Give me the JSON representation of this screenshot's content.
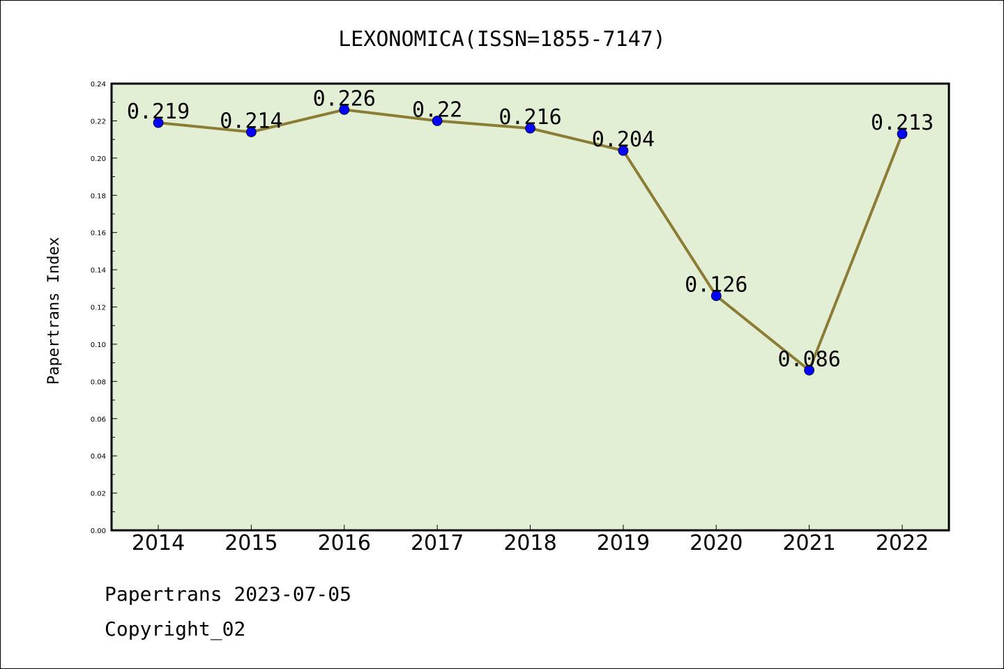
{
  "chart_data": {
    "type": "line",
    "title": "LEXONOMICA(ISSN=1855-7147)",
    "xlabel": "",
    "ylabel": "Papertrans Index",
    "categories": [
      "2014",
      "2015",
      "2016",
      "2017",
      "2018",
      "2019",
      "2020",
      "2021",
      "2022"
    ],
    "series": [
      {
        "values": [
          0.219,
          0.214,
          0.226,
          0.22,
          0.216,
          0.204,
          0.126,
          0.086,
          0.213
        ]
      }
    ],
    "data_labels": [
      "0.219",
      "0.214",
      "0.226",
      "0.22",
      "0.216",
      "0.204",
      "0.126",
      "0.086",
      "0.213"
    ],
    "ylim": [
      0,
      0.24
    ],
    "yticks": [
      "0.00",
      "0.02",
      "0.04",
      "0.06",
      "0.08",
      "0.10",
      "0.12",
      "0.14",
      "0.16",
      "0.18",
      "0.20",
      "0.22",
      "0.24"
    ],
    "grid": false,
    "colors": {
      "plot_background": "#e2efd5",
      "line": "#8b7d35",
      "marker": "#0000ff"
    }
  },
  "footer": {
    "line1": "Papertrans 2023-07-05",
    "line2": "Copyright_02"
  }
}
